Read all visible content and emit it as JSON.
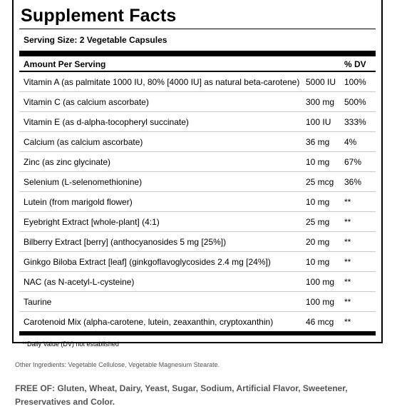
{
  "panel": {
    "title": "Supplement Facts",
    "serving_size": "Serving Size: 2 Vegetable Capsules",
    "header_amount": "Amount Per Serving",
    "header_dv": "% DV",
    "footnote": "**Daily Value (DV) not established"
  },
  "nutrients": [
    {
      "name": "Vitamin A (as palmitate 1000 IU, 80% [4000 IU] as natural beta-carotene)",
      "amount": "5000 IU",
      "dv": "100%"
    },
    {
      "name": "Vitamin C (as calcium ascorbate)",
      "amount": "300 mg",
      "dv": "500%"
    },
    {
      "name": "Vitamin E (as d-alpha-tocopheryl succinate)",
      "amount": "100 IU",
      "dv": "333%"
    },
    {
      "name": "Calcium (as calcium ascorbate)",
      "amount": "36 mg",
      "dv": "4%"
    },
    {
      "name": "Zinc (as zinc glycinate)",
      "amount": "10 mg",
      "dv": "67%"
    },
    {
      "name": "Selenium (L-selenomethionine)",
      "amount": "25 mcg",
      "dv": "36%"
    },
    {
      "name": "Lutein (from marigold flower)",
      "amount": "10 mg",
      "dv": "**"
    },
    {
      "name": "Eyebright Extract [whole-plant] (4:1)",
      "amount": "25 mg",
      "dv": "**"
    },
    {
      "name": "Bilberry Extract [berry] (anthocyanosides 5 mg [25%])",
      "amount": "20 mg",
      "dv": "**"
    },
    {
      "name": "Ginkgo Biloba Extract [leaf] (ginkgoflavoglycosides 2.4 mg [24%])",
      "amount": "10 mg",
      "dv": "**"
    },
    {
      "name": "NAC (as N-acetyl-L-cysteine)",
      "amount": "100 mg",
      "dv": "**"
    },
    {
      "name": "Taurine",
      "amount": "100 mg",
      "dv": "**"
    },
    {
      "name": "Carotenoid Mix (alpha-carotene, lutein, zeaxanthin, cryptoxanthin)",
      "amount": "46 mcg",
      "dv": "**"
    }
  ],
  "other_ingredients": "Other Ingredients: Vegetable Cellulose, Vegetable Magnesium Stearate.",
  "free_of": "FREE OF: Gluten, Wheat, Dairy, Yeast, Sugar, Sodium, Artificial Flavor, Sweetener, Preservatives and Color."
}
